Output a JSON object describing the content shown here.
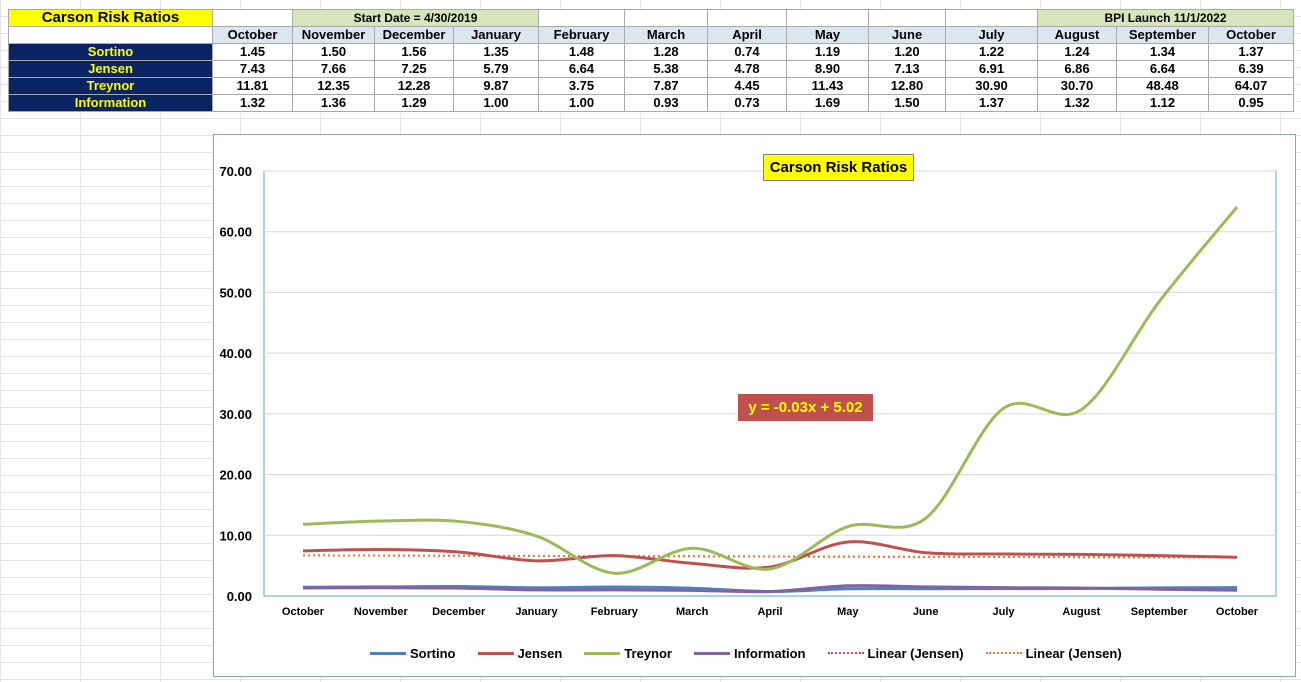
{
  "sheet": {
    "title": "Carson Risk Ratios",
    "start_note": "Start Date = 4/30/2019",
    "launch_note": "BPI Launch 11/1/2022",
    "months": [
      "October",
      "November",
      "December",
      "January",
      "February",
      "March",
      "April",
      "May",
      "June",
      "July",
      "August",
      "September",
      "October"
    ],
    "rows": [
      {
        "label": "Sortino",
        "values": [
          "1.45",
          "1.50",
          "1.56",
          "1.35",
          "1.48",
          "1.28",
          "0.74",
          "1.19",
          "1.20",
          "1.22",
          "1.24",
          "1.34",
          "1.37"
        ]
      },
      {
        "label": "Jensen",
        "values": [
          "7.43",
          "7.66",
          "7.25",
          "5.79",
          "6.64",
          "5.38",
          "4.78",
          "8.90",
          "7.13",
          "6.91",
          "6.86",
          "6.64",
          "6.39"
        ]
      },
      {
        "label": "Treynor",
        "values": [
          "11.81",
          "12.35",
          "12.28",
          "9.87",
          "3.75",
          "7.87",
          "4.45",
          "11.43",
          "12.80",
          "30.90",
          "30.70",
          "48.48",
          "64.07"
        ]
      },
      {
        "label": "Information",
        "values": [
          "1.32",
          "1.36",
          "1.29",
          "1.00",
          "1.00",
          "0.93",
          "0.73",
          "1.69",
          "1.50",
          "1.37",
          "1.32",
          "1.12",
          "0.95"
        ]
      }
    ]
  },
  "chart_data": {
    "type": "line",
    "title": "Carson Risk Ratios",
    "categories": [
      "October",
      "November",
      "December",
      "January",
      "February",
      "March",
      "April",
      "May",
      "June",
      "July",
      "August",
      "September",
      "October"
    ],
    "ylim": [
      0,
      70
    ],
    "yticks": [
      "0.00",
      "10.00",
      "20.00",
      "30.00",
      "40.00",
      "50.00",
      "60.00",
      "70.00"
    ],
    "grid": true,
    "legend_position": "bottom",
    "series": [
      {
        "name": "Sortino",
        "color": "#4f81bd",
        "values": [
          1.45,
          1.5,
          1.56,
          1.35,
          1.48,
          1.28,
          0.74,
          1.19,
          1.2,
          1.22,
          1.24,
          1.34,
          1.37
        ]
      },
      {
        "name": "Jensen",
        "color": "#c0504d",
        "values": [
          7.43,
          7.66,
          7.25,
          5.79,
          6.64,
          5.38,
          4.78,
          8.9,
          7.13,
          6.91,
          6.86,
          6.64,
          6.39
        ]
      },
      {
        "name": "Treynor",
        "color": "#9bbb59",
        "values": [
          11.81,
          12.35,
          12.28,
          9.87,
          3.75,
          7.87,
          4.45,
          11.43,
          12.8,
          30.9,
          30.7,
          48.48,
          64.07
        ]
      },
      {
        "name": "Information",
        "color": "#8064a2",
        "values": [
          1.32,
          1.36,
          1.29,
          1.0,
          1.0,
          0.93,
          0.73,
          1.69,
          1.5,
          1.37,
          1.32,
          1.12,
          0.95
        ]
      }
    ],
    "trendlines": [
      {
        "name": "Linear (Jensen)",
        "color": "#c0504d",
        "slope": -0.03,
        "intercept": 5.02
      },
      {
        "name": "Linear (Jensen)",
        "color": "#c0504d",
        "slope": -0.03,
        "intercept": 5.02
      }
    ],
    "annotation": "y = -0.03x + 5.02"
  }
}
